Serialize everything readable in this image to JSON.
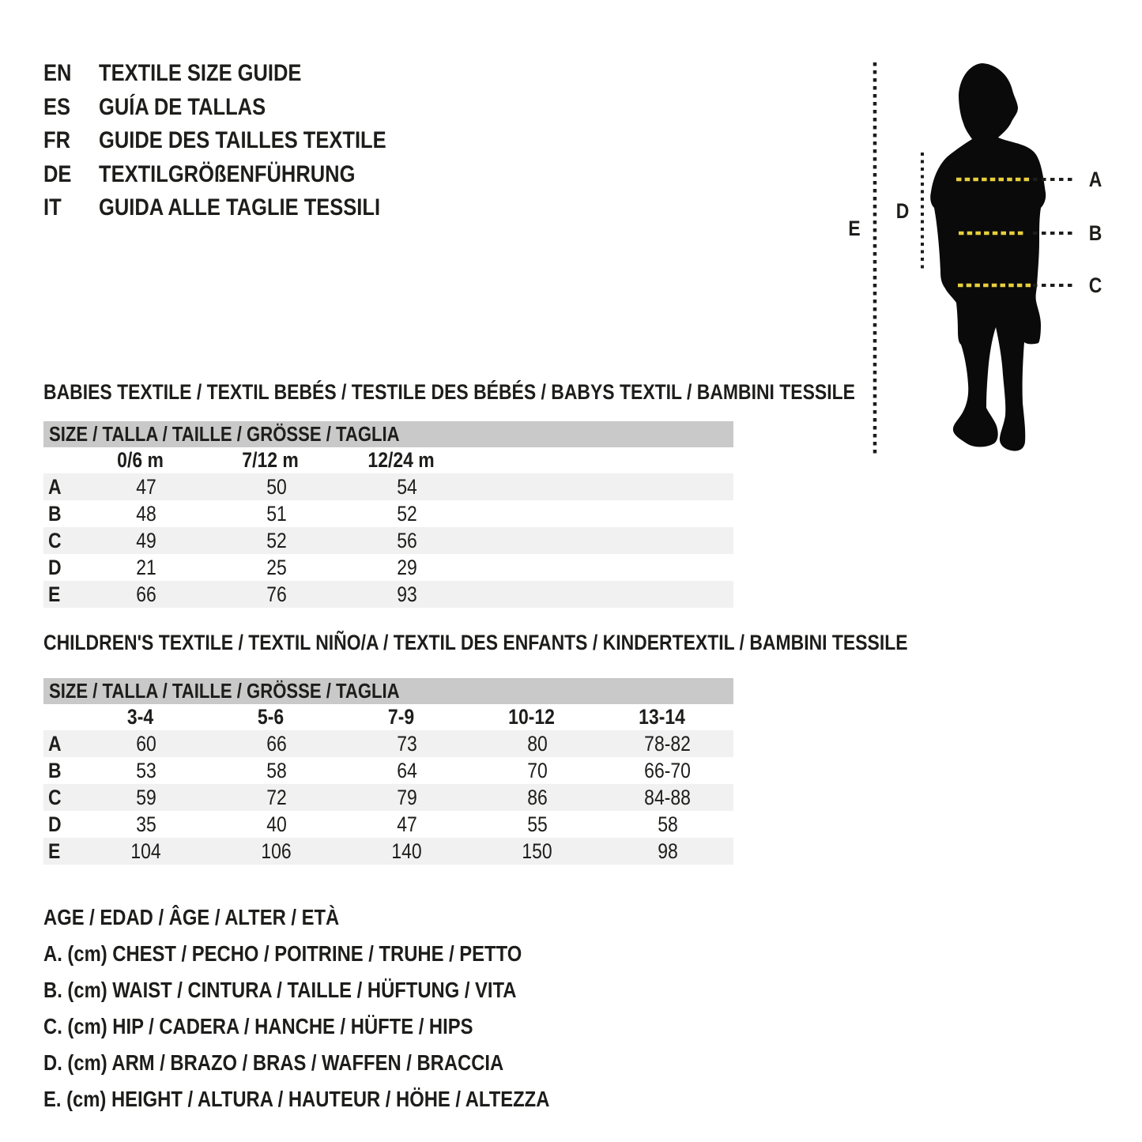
{
  "languages": [
    {
      "code": "EN",
      "title": "TEXTILE SIZE GUIDE"
    },
    {
      "code": "ES",
      "title": "GUÍA DE TALLAS"
    },
    {
      "code": "FR",
      "title": "GUIDE DES TAILLES TEXTILE"
    },
    {
      "code": "DE",
      "title": "TEXTILGRÖßENFÜHRUNG"
    },
    {
      "code": "IT",
      "title": "GUIDA ALLE TAGLIE TESSILI"
    }
  ],
  "figure": {
    "labels": {
      "a": "A",
      "b": "B",
      "c": "C",
      "d": "D",
      "e": "E"
    },
    "line_yellow": "#e7cf3c",
    "silhouette_color": "#0a0a0a"
  },
  "babies": {
    "heading": "BABIES TEXTILE / TEXTIL BEBÉS / TESTILE DES BÉBÉS / BABYS TEXTIL / BAMBINI TESSILE",
    "size_header": "SIZE / TALLA / TAILLE / GRÖSSE / TAGLIA",
    "columns": [
      "0/6 m",
      "7/12 m",
      "12/24 m"
    ],
    "rows": [
      {
        "label": "A",
        "values": [
          "47",
          "50",
          "54"
        ]
      },
      {
        "label": "B",
        "values": [
          "48",
          "51",
          "52"
        ]
      },
      {
        "label": "C",
        "values": [
          "49",
          "52",
          "56"
        ]
      },
      {
        "label": "D",
        "values": [
          "21",
          "25",
          "29"
        ]
      },
      {
        "label": "E",
        "values": [
          "66",
          "76",
          "93"
        ]
      }
    ]
  },
  "children": {
    "heading": "CHILDREN'S TEXTILE / TEXTIL NIÑO/A / TEXTIL DES ENFANTS / KINDERTEXTIL / BAMBINI TESSILE",
    "size_header": "SIZE / TALLA / TAILLE / GRÖSSE / TAGLIA",
    "columns": [
      "3-4",
      "5-6",
      "7-9",
      "10-12",
      "13-14"
    ],
    "rows": [
      {
        "label": "A",
        "values": [
          "60",
          "66",
          "73",
          "80",
          "78-82"
        ]
      },
      {
        "label": "B",
        "values": [
          "53",
          "58",
          "64",
          "70",
          "66-70"
        ]
      },
      {
        "label": "C",
        "values": [
          "59",
          "72",
          "79",
          "86",
          "84-88"
        ]
      },
      {
        "label": "D",
        "values": [
          "35",
          "40",
          "47",
          "55",
          "58"
        ]
      },
      {
        "label": "E",
        "values": [
          "104",
          "106",
          "140",
          "150",
          "98"
        ]
      }
    ]
  },
  "legend": {
    "lines": [
      "AGE / EDAD / ÂGE / ALTER / ETÀ",
      "A. (cm) CHEST / PECHO / POITRINE / TRUHE / PETTO",
      "B. (cm) WAIST / CINTURA / TAILLE / HÜFTUNG / VITA",
      "C. (cm) HIP / CADERA / HANCHE / HÜFTE / HIPS",
      "D. (cm) ARM / BRAZO / BRAS / WAFFEN / BRACCIA",
      "E. (cm) HEIGHT / ALTURA / HAUTEUR / HÖHE / ALTEZZA"
    ]
  },
  "colors": {
    "header_bar": "#c9c9c9",
    "row_stripe": "#f1f1f1",
    "text": "#1d1d1b",
    "yellow": "#e7cf3c"
  }
}
